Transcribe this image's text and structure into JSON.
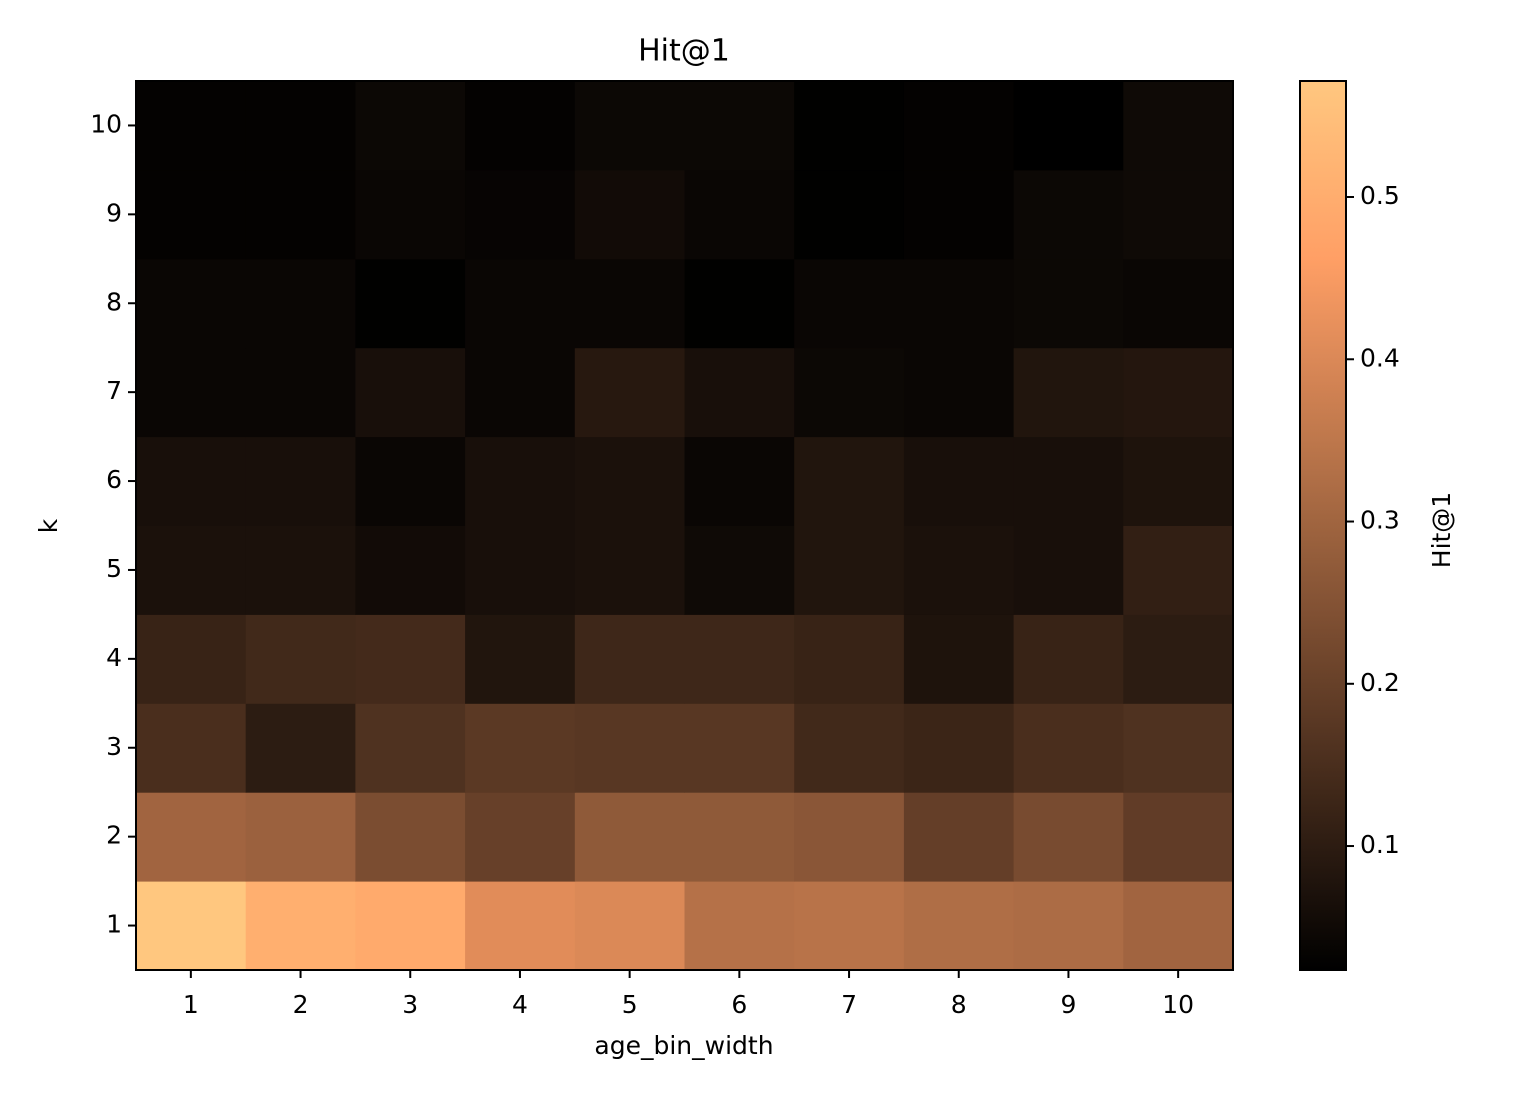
{
  "chart_data": {
    "type": "heatmap",
    "title": "Hit@1",
    "x_label": "age_bin_width",
    "y_label": "k",
    "x": [
      1,
      2,
      3,
      4,
      5,
      6,
      7,
      8,
      9,
      10
    ],
    "y": [
      1,
      2,
      3,
      4,
      5,
      6,
      7,
      8,
      9,
      10
    ],
    "z": [
      [
        0.57,
        0.505,
        0.49,
        0.41,
        0.4,
        0.335,
        0.34,
        0.325,
        0.32,
        0.3
      ],
      [
        0.3,
        0.29,
        0.235,
        0.2,
        0.27,
        0.27,
        0.26,
        0.195,
        0.23,
        0.19
      ],
      [
        0.15,
        0.1,
        0.16,
        0.18,
        0.175,
        0.175,
        0.135,
        0.125,
        0.15,
        0.16
      ],
      [
        0.12,
        0.135,
        0.14,
        0.08,
        0.13,
        0.13,
        0.12,
        0.075,
        0.12,
        0.1
      ],
      [
        0.07,
        0.07,
        0.055,
        0.065,
        0.07,
        0.05,
        0.08,
        0.07,
        0.065,
        0.11
      ],
      [
        0.065,
        0.065,
        0.04,
        0.065,
        0.07,
        0.04,
        0.08,
        0.065,
        0.065,
        0.075
      ],
      [
        0.04,
        0.04,
        0.065,
        0.04,
        0.09,
        0.065,
        0.045,
        0.04,
        0.08,
        0.085
      ],
      [
        0.04,
        0.04,
        0.025,
        0.04,
        0.04,
        0.025,
        0.04,
        0.04,
        0.045,
        0.04
      ],
      [
        0.03,
        0.03,
        0.04,
        0.035,
        0.055,
        0.04,
        0.025,
        0.03,
        0.045,
        0.05
      ],
      [
        0.03,
        0.03,
        0.045,
        0.03,
        0.045,
        0.045,
        0.025,
        0.03,
        0.024,
        0.05
      ]
    ],
    "colormap": "copper",
    "zlim": [
      0.0236,
      0.5715
    ],
    "zticks": [
      0.1,
      0.2,
      0.3,
      0.4,
      0.5
    ],
    "colorbar_label": "Hit@1"
  }
}
